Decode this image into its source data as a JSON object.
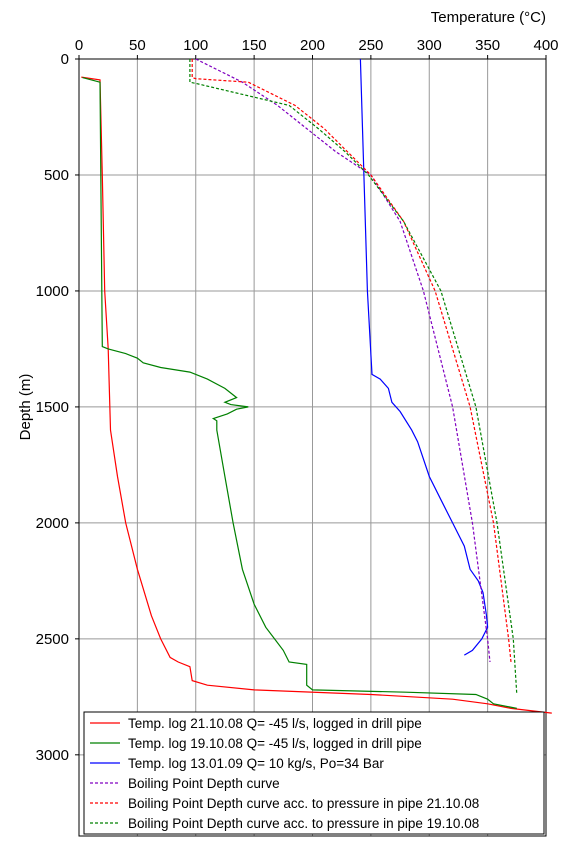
{
  "chart_data": {
    "type": "line",
    "x_label": "Temperature (°C)",
    "y_label": "Depth (m)",
    "xlim": [
      0,
      400
    ],
    "xticks": [
      0,
      50,
      100,
      150,
      200,
      250,
      300,
      350,
      400
    ],
    "ylim": [
      0,
      3350
    ],
    "yticks": [
      0,
      500,
      1000,
      1500,
      2000,
      2500,
      3000
    ],
    "y_inverted": true,
    "x_axis_position": "top",
    "grid": true,
    "legend": "bottom",
    "series": [
      {
        "name": "Temp. log 21.10.08 Q= -45 l/s, logged in drill pipe",
        "color": "#ff0000",
        "dash": false,
        "x": [
          2,
          18,
          20,
          22,
          25,
          27,
          33,
          40,
          50,
          62,
          70,
          78,
          85,
          95,
          97,
          110,
          150,
          250,
          320,
          350,
          370,
          405
        ],
        "y": [
          78,
          90,
          500,
          1000,
          1250,
          1600,
          1800,
          2000,
          2200,
          2400,
          2500,
          2580,
          2600,
          2620,
          2680,
          2700,
          2720,
          2740,
          2760,
          2780,
          2800,
          2820
        ]
      },
      {
        "name": "Temp. log 19.10.08 Q= -45 l/s, logged in drill pipe",
        "color": "#008000",
        "dash": false,
        "x": [
          3,
          18,
          20,
          25,
          40,
          50,
          55,
          70,
          95,
          110,
          125,
          135,
          125,
          130,
          145,
          135,
          127,
          115,
          118,
          118,
          125,
          132,
          140,
          150,
          160,
          175,
          180,
          195,
          195,
          200,
          280,
          340,
          350,
          355,
          375
        ],
        "y": [
          80,
          100,
          1240,
          1250,
          1270,
          1290,
          1310,
          1330,
          1350,
          1380,
          1420,
          1460,
          1480,
          1490,
          1500,
          1510,
          1530,
          1550,
          1560,
          1600,
          1800,
          2000,
          2200,
          2350,
          2450,
          2550,
          2600,
          2610,
          2700,
          2720,
          2730,
          2740,
          2760,
          2780,
          2800
        ]
      },
      {
        "name": "Temp. log 13.01.09 Q= 10 kg/s, Po=34 Bar",
        "color": "#0000ff",
        "dash": false,
        "x": [
          241,
          247,
          251,
          258,
          265,
          268,
          275,
          285,
          290,
          300,
          310,
          320,
          330,
          335,
          342,
          346,
          349,
          350,
          345,
          337,
          330
        ],
        "y": [
          0,
          1000,
          1360,
          1380,
          1420,
          1480,
          1520,
          1600,
          1650,
          1800,
          1900,
          2000,
          2100,
          2200,
          2250,
          2300,
          2400,
          2450,
          2500,
          2550,
          2570
        ]
      },
      {
        "name": "Boiling Point Depth curve",
        "color": "#8000c0",
        "dash": true,
        "x": [
          100,
          140,
          170,
          195,
          220,
          250,
          275,
          295,
          320,
          337,
          350,
          352
        ],
        "y": [
          0,
          100,
          200,
          300,
          400,
          500,
          700,
          1000,
          1500,
          2000,
          2500,
          2600
        ]
      },
      {
        "name": "Boiling Point Depth curve acc. to pressure in pipe 21.10.08",
        "color": "#ff0000",
        "dash": true,
        "x": [
          97,
          97,
          100,
          145,
          185,
          210,
          230,
          250,
          278,
          305,
          335,
          355,
          368,
          370
        ],
        "y": [
          0,
          80,
          85,
          100,
          200,
          300,
          400,
          500,
          700,
          1000,
          1500,
          2000,
          2500,
          2600
        ]
      },
      {
        "name": "Boiling Point Depth curve acc. to pressure in pipe 19.10.08",
        "color": "#008000",
        "dash": true,
        "x": [
          95,
          95,
          100,
          180,
          205,
          228,
          248,
          278,
          310,
          340,
          358,
          372,
          375
        ],
        "y": [
          0,
          100,
          105,
          200,
          300,
          400,
          500,
          700,
          1000,
          1500,
          2000,
          2500,
          2740
        ]
      }
    ]
  }
}
